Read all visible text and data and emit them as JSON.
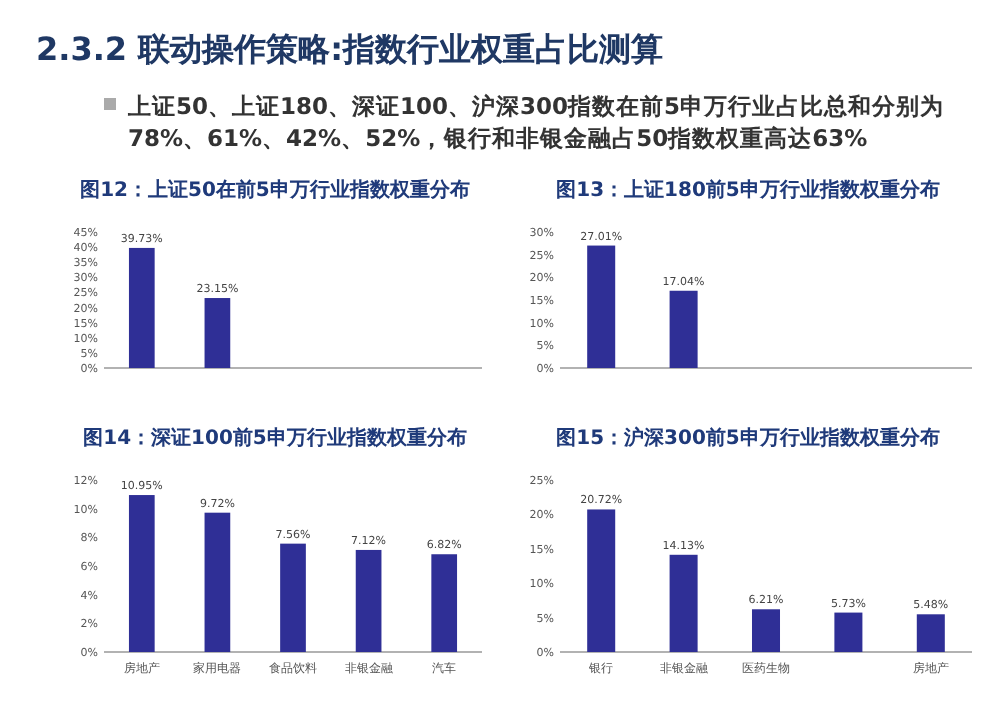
{
  "chart_data": [
    {
      "type": "other",
      "title": "2.3.2 联动操作策略:指数行业权重占比测算",
      "annotations": [
        "上证50、上证180、深证100、沪深300指数在前5申万行业占比总和分别为78%、61%、42%、52%，银行和非银金融占50指数权重高达63%"
      ]
    },
    {
      "type": "bar",
      "title": "图12：上证50在前5申万行业指数权重分布",
      "categories": [
        null,
        null,
        null,
        null,
        null
      ],
      "values": [
        39.73,
        23.15,
        null,
        null,
        null
      ],
      "value_labels": [
        "39.73%",
        "23.15%",
        null,
        null,
        null
      ],
      "color": "#2f2f96",
      "ylim": [
        0,
        45
      ],
      "yticks": [
        {
          "value": 0,
          "label": "0%"
        },
        {
          "value": 5,
          "label": "5%"
        },
        {
          "value": 10,
          "label": "10%"
        },
        {
          "value": 15,
          "label": "15%"
        },
        {
          "value": 20,
          "label": "20%"
        },
        {
          "value": 25,
          "label": "25%"
        },
        {
          "value": 30,
          "label": "30%"
        },
        {
          "value": 35,
          "label": "35%"
        },
        {
          "value": 40,
          "label": "40%"
        },
        {
          "value": 45,
          "label": "45%"
        }
      ],
      "grid": false
    },
    {
      "type": "bar",
      "title": "图13：上证180前5申万行业指数权重分布",
      "categories": [
        null,
        null,
        null,
        null,
        null
      ],
      "values": [
        27.01,
        17.04,
        null,
        null,
        null
      ],
      "value_labels": [
        "27.01%",
        "17.04%",
        null,
        null,
        null
      ],
      "color": "#2f2f96",
      "ylim": [
        0,
        30
      ],
      "yticks": [
        {
          "value": 0,
          "label": "0%"
        },
        {
          "value": 5,
          "label": "5%"
        },
        {
          "value": 10,
          "label": "10%"
        },
        {
          "value": 15,
          "label": "15%"
        },
        {
          "value": 20,
          "label": "20%"
        },
        {
          "value": 25,
          "label": "25%"
        },
        {
          "value": 30,
          "label": "30%"
        }
      ],
      "grid": false
    },
    {
      "type": "bar",
      "title": "图14：深证100前5申万行业指数权重分布",
      "categories": [
        "房地产",
        "家用电器",
        "食品饮料",
        "非银金融",
        "汽车"
      ],
      "values": [
        10.95,
        9.72,
        7.56,
        7.12,
        6.82
      ],
      "value_labels": [
        "10.95%",
        "9.72%",
        "7.56%",
        "7.12%",
        "6.82%"
      ],
      "color": "#2f2f96",
      "ylim": [
        0,
        12
      ],
      "yticks": [
        {
          "value": 0,
          "label": "0%"
        },
        {
          "value": 2,
          "label": "2%"
        },
        {
          "value": 4,
          "label": "4%"
        },
        {
          "value": 6,
          "label": "6%"
        },
        {
          "value": 8,
          "label": "8%"
        },
        {
          "value": 10,
          "label": "10%"
        },
        {
          "value": 12,
          "label": "12%"
        }
      ],
      "grid": false
    },
    {
      "type": "bar",
      "title": "图15：沪深300前5申万行业指数权重分布",
      "categories": [
        "银行",
        "非银金融",
        "医药生物",
        null,
        "房地产"
      ],
      "values": [
        20.72,
        14.13,
        6.21,
        5.73,
        5.48
      ],
      "value_labels": [
        "20.72%",
        "14.13%",
        "6.21%",
        "5.73%",
        "5.48%"
      ],
      "color": "#2f2f96",
      "ylim": [
        0,
        25
      ],
      "yticks": [
        {
          "value": 0,
          "label": "0%"
        },
        {
          "value": 5,
          "label": "5%"
        },
        {
          "value": 10,
          "label": "10%"
        },
        {
          "value": 15,
          "label": "15%"
        },
        {
          "value": 20,
          "label": "20%"
        },
        {
          "value": 25,
          "label": "25%"
        }
      ],
      "grid": false
    }
  ]
}
